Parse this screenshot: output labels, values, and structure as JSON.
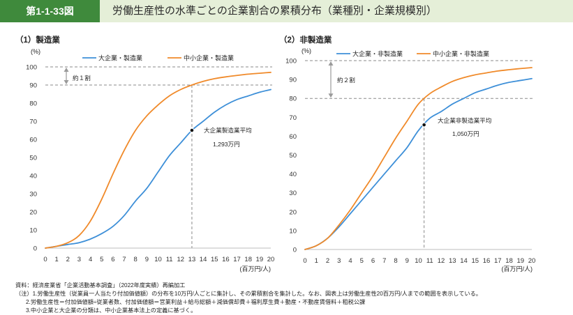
{
  "header": {
    "figure_no": "第1-1-33図",
    "title": "労働生産性の水準ごとの企業割合の累積分布（業種別・企業規模別）"
  },
  "colors": {
    "header_dark": "#3f8a3c",
    "header_band": "#e5efd8",
    "large_enterprise": "#3d8fd8",
    "sme": "#f08a2a",
    "reference": "#8a8a8a"
  },
  "chart_data": [
    {
      "type": "line",
      "panel_title": "（1）製造業",
      "ylabel": "(%)",
      "xlabel": "(百万円/人)",
      "xlim": [
        0,
        20
      ],
      "ylim": [
        0,
        100
      ],
      "x_ticks": [
        "0",
        "1",
        "2",
        "3",
        "4",
        "5",
        "6",
        "7",
        "8",
        "9",
        "10",
        "11",
        "12",
        "13",
        "14",
        "15",
        "16",
        "17",
        "18",
        "19",
        "20"
      ],
      "y_ticks": [
        "0",
        "10",
        "20",
        "30",
        "40",
        "50",
        "60",
        "70",
        "80",
        "90",
        "100"
      ],
      "grid": false,
      "legend_position": "top",
      "x": [
        0,
        1,
        2,
        3,
        4,
        5,
        6,
        7,
        8,
        9,
        10,
        11,
        12,
        13,
        14,
        15,
        16,
        17,
        18,
        19,
        20
      ],
      "series": [
        {
          "name": "大企業・製造業",
          "color": "#3d8fd8",
          "values": [
            0,
            1,
            2,
            3,
            5,
            8,
            12,
            18,
            26,
            33,
            42,
            51,
            58,
            65,
            70,
            75,
            79,
            82,
            84,
            86,
            87.5
          ]
        },
        {
          "name": "中小企業・製造業",
          "color": "#f08a2a",
          "values": [
            0,
            1,
            3,
            7,
            15,
            27,
            41,
            54,
            65,
            73,
            79,
            84,
            87.5,
            90,
            92,
            93.5,
            94.5,
            95.3,
            96,
            96.5,
            97
          ]
        }
      ],
      "reference_lines": {
        "y": [
          100,
          90
        ]
      },
      "vertical_reference": {
        "x": 13,
        "y_top": 90
      },
      "range_annotation": {
        "label": "約１割",
        "from": 100,
        "to": 90
      },
      "mean_marker": {
        "x": 13,
        "y": 65,
        "label": "大企業製造業平均",
        "value_label": "1,293万円"
      }
    },
    {
      "type": "line",
      "panel_title": "（2）非製造業",
      "ylabel": "(%)",
      "xlabel": "(百万円/人)",
      "xlim": [
        0,
        20
      ],
      "ylim": [
        0,
        100
      ],
      "x_ticks": [
        "0",
        "1",
        "2",
        "3",
        "4",
        "5",
        "6",
        "7",
        "8",
        "9",
        "10",
        "11",
        "12",
        "13",
        "14",
        "15",
        "16",
        "17",
        "18",
        "19",
        "20"
      ],
      "y_ticks": [
        "0",
        "10",
        "20",
        "30",
        "40",
        "50",
        "60",
        "70",
        "80",
        "90",
        "100"
      ],
      "grid": false,
      "legend_position": "top",
      "x": [
        0,
        1,
        2,
        3,
        4,
        5,
        6,
        7,
        8,
        9,
        10,
        11,
        12,
        13,
        14,
        15,
        16,
        17,
        18,
        19,
        20
      ],
      "series": [
        {
          "name": "大企業・非製造業",
          "color": "#3d8fd8",
          "values": [
            0,
            2,
            6,
            12,
            19,
            26,
            33,
            40,
            47,
            54,
            63,
            69.5,
            73,
            77,
            80,
            83,
            85,
            87,
            88.5,
            89.5,
            90.5
          ]
        },
        {
          "name": "中小企業・非製造業",
          "color": "#f08a2a",
          "values": [
            0,
            2,
            6,
            13,
            21,
            30,
            39,
            49,
            59,
            68,
            77,
            82.5,
            86,
            89,
            91,
            92.5,
            93.5,
            94.5,
            95.2,
            95.8,
            96.3
          ]
        }
      ],
      "reference_lines": {
        "y": [
          100,
          80
        ]
      },
      "vertical_reference": {
        "x": 10.5,
        "y_top": 80
      },
      "range_annotation": {
        "label": "約２割",
        "from": 100,
        "to": 80
      },
      "mean_marker": {
        "x": 10.5,
        "y": 66,
        "label": "大企業非製造業平均",
        "value_label": "1,050万円"
      }
    }
  ],
  "notes": {
    "source": "資料：経済産業省「企業活動基本調査」（2022年度実績）再編加工",
    "label": "（注）",
    "items": [
      "1.労働生産性（従業員一人当たり付加価値額）の分布を10万円/人ごとに集計し、その累積割合を集計した。なお、図表上は労働生産性20百万円/人までの範囲を表示している。",
      "2.労働生産性＝付加価値額÷従業者数、付加価値額＝営業利益＋給与総額＋減価償却費＋福利厚生費＋動産・不動産賃借料＋租税公課",
      "3.中小企業と大企業の分類は、中小企業基本法上の定義に基づく。"
    ]
  }
}
